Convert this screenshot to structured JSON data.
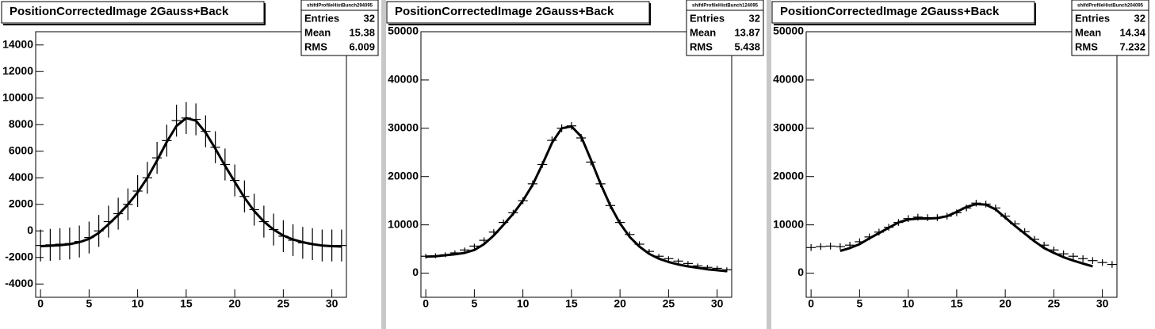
{
  "chart_data": [
    {
      "type": "errorbar",
      "title": "PositionCorrectedImage 2Gauss+Back",
      "stats": {
        "name": "shifdProfileHistBunch294095",
        "labels": [
          "Entries",
          "Mean",
          "RMS"
        ],
        "values": [
          32,
          15.38,
          6.009
        ]
      },
      "x": [
        0,
        1,
        2,
        3,
        4,
        5,
        6,
        7,
        8,
        9,
        10,
        11,
        12,
        13,
        14,
        15,
        16,
        17,
        18,
        19,
        20,
        21,
        22,
        23,
        24,
        25,
        26,
        27,
        28,
        29,
        30,
        31
      ],
      "values": [
        -1100,
        -1050,
        -1000,
        -950,
        -800,
        -500,
        0,
        700,
        1300,
        2000,
        3000,
        4000,
        5500,
        6800,
        8300,
        8500,
        8400,
        7500,
        6300,
        5000,
        3800,
        2600,
        1600,
        700,
        100,
        -400,
        -700,
        -900,
        -1000,
        -1100,
        -1100,
        -1100
      ],
      "errors": [
        1200,
        1200,
        1200,
        1200,
        1200,
        1200,
        1200,
        1200,
        1200,
        1200,
        1200,
        1200,
        1200,
        1200,
        1200,
        1200,
        1200,
        1200,
        1200,
        1200,
        1200,
        1200,
        1200,
        1200,
        1200,
        1200,
        1200,
        1200,
        1200,
        1200,
        1200,
        1200
      ],
      "fit": {
        "values": [
          -1150,
          -1120,
          -1080,
          -1000,
          -850,
          -600,
          -150,
          500,
          1200,
          2000,
          2900,
          4000,
          5300,
          6700,
          7900,
          8500,
          8300,
          7400,
          6200,
          4900,
          3700,
          2500,
          1500,
          700,
          100,
          -350,
          -650,
          -850,
          -1000,
          -1100,
          -1150,
          -1180
        ]
      },
      "color": "#000000",
      "xlim": [
        -0.5,
        31.5
      ],
      "xticks": [
        0,
        5,
        10,
        15,
        20,
        25,
        30
      ],
      "ylim": [
        -5000,
        15000
      ],
      "yticks": [
        -4000,
        -2000,
        0,
        2000,
        4000,
        6000,
        8000,
        10000,
        12000,
        14000
      ]
    },
    {
      "type": "errorbar",
      "title": "PositionCorrectedImage 2Gauss+Back",
      "stats": {
        "name": "shifdProfileHistBunch124095",
        "labels": [
          "Entries",
          "Mean",
          "RMS"
        ],
        "values": [
          32,
          13.87,
          5.438
        ]
      },
      "x": [
        0,
        1,
        2,
        3,
        4,
        5,
        6,
        7,
        8,
        9,
        10,
        11,
        12,
        13,
        14,
        15,
        16,
        17,
        18,
        19,
        20,
        21,
        22,
        23,
        24,
        25,
        26,
        27,
        28,
        29,
        30,
        31
      ],
      "values": [
        3500,
        3600,
        3800,
        4200,
        4800,
        5600,
        6800,
        8500,
        10500,
        12500,
        15000,
        18500,
        22500,
        27500,
        30000,
        30500,
        28000,
        23000,
        18500,
        14000,
        10500,
        8000,
        6000,
        4500,
        3500,
        3000,
        2500,
        2000,
        1500,
        1200,
        1000,
        700
      ],
      "errors": [
        500,
        500,
        500,
        500,
        500,
        500,
        600,
        600,
        600,
        600,
        700,
        700,
        700,
        800,
        800,
        800,
        800,
        700,
        700,
        700,
        600,
        600,
        600,
        500,
        500,
        500,
        500,
        500,
        500,
        500,
        500,
        500
      ],
      "fit": {
        "values": [
          3400,
          3500,
          3700,
          3900,
          4200,
          4800,
          6000,
          7800,
          10000,
          12300,
          15000,
          18300,
          22500,
          27000,
          30000,
          30400,
          28300,
          23500,
          18500,
          14000,
          10300,
          7500,
          5500,
          4000,
          3000,
          2300,
          1800,
          1400,
          1100,
          800,
          600,
          400
        ]
      },
      "color": "#000000",
      "xlim": [
        -0.5,
        31.5
      ],
      "xticks": [
        0,
        5,
        10,
        15,
        20,
        25,
        30
      ],
      "ylim": [
        -5000,
        50000
      ],
      "yticks": [
        0,
        10000,
        20000,
        30000,
        40000,
        50000
      ]
    },
    {
      "type": "errorbar",
      "title": "PositionCorrectedImage 2Gauss+Back",
      "stats": {
        "name": "shifdProfileHistBunch204095",
        "labels": [
          "Entries",
          "Mean",
          "RMS"
        ],
        "values": [
          32,
          14.34,
          7.232
        ]
      },
      "x": [
        0,
        1,
        2,
        3,
        4,
        5,
        6,
        7,
        8,
        9,
        10,
        11,
        12,
        13,
        14,
        15,
        16,
        17,
        18,
        19,
        20,
        21,
        22,
        23,
        24,
        25,
        26,
        27,
        28,
        29,
        30,
        31
      ],
      "values": [
        5300,
        5500,
        5600,
        5500,
        5800,
        6500,
        7500,
        8500,
        9500,
        10500,
        11300,
        11600,
        11500,
        11500,
        11800,
        12500,
        13500,
        14500,
        14300,
        13500,
        11800,
        10200,
        8600,
        7000,
        5800,
        4800,
        4000,
        3500,
        3000,
        2600,
        2200,
        1800
      ],
      "errors": [
        700,
        700,
        700,
        700,
        700,
        700,
        700,
        700,
        700,
        700,
        700,
        700,
        700,
        700,
        700,
        700,
        700,
        700,
        700,
        700,
        700,
        700,
        700,
        700,
        700,
        700,
        700,
        700,
        700,
        700,
        700,
        700
      ],
      "fit": {
        "values": [
          null,
          null,
          null,
          4600,
          5200,
          6000,
          7200,
          8300,
          9400,
          10500,
          11100,
          11300,
          11300,
          11400,
          11800,
          12700,
          13700,
          14300,
          14200,
          13200,
          11500,
          9800,
          8200,
          6600,
          5200,
          4200,
          3300,
          2600,
          2000,
          1400,
          null,
          null
        ]
      },
      "color": "#000000",
      "xlim": [
        -0.5,
        31.5
      ],
      "xticks": [
        0,
        5,
        10,
        15,
        20,
        25,
        30
      ],
      "ylim": [
        -5000,
        50000
      ],
      "yticks": [
        0,
        10000,
        20000,
        30000,
        40000,
        50000
      ]
    }
  ]
}
